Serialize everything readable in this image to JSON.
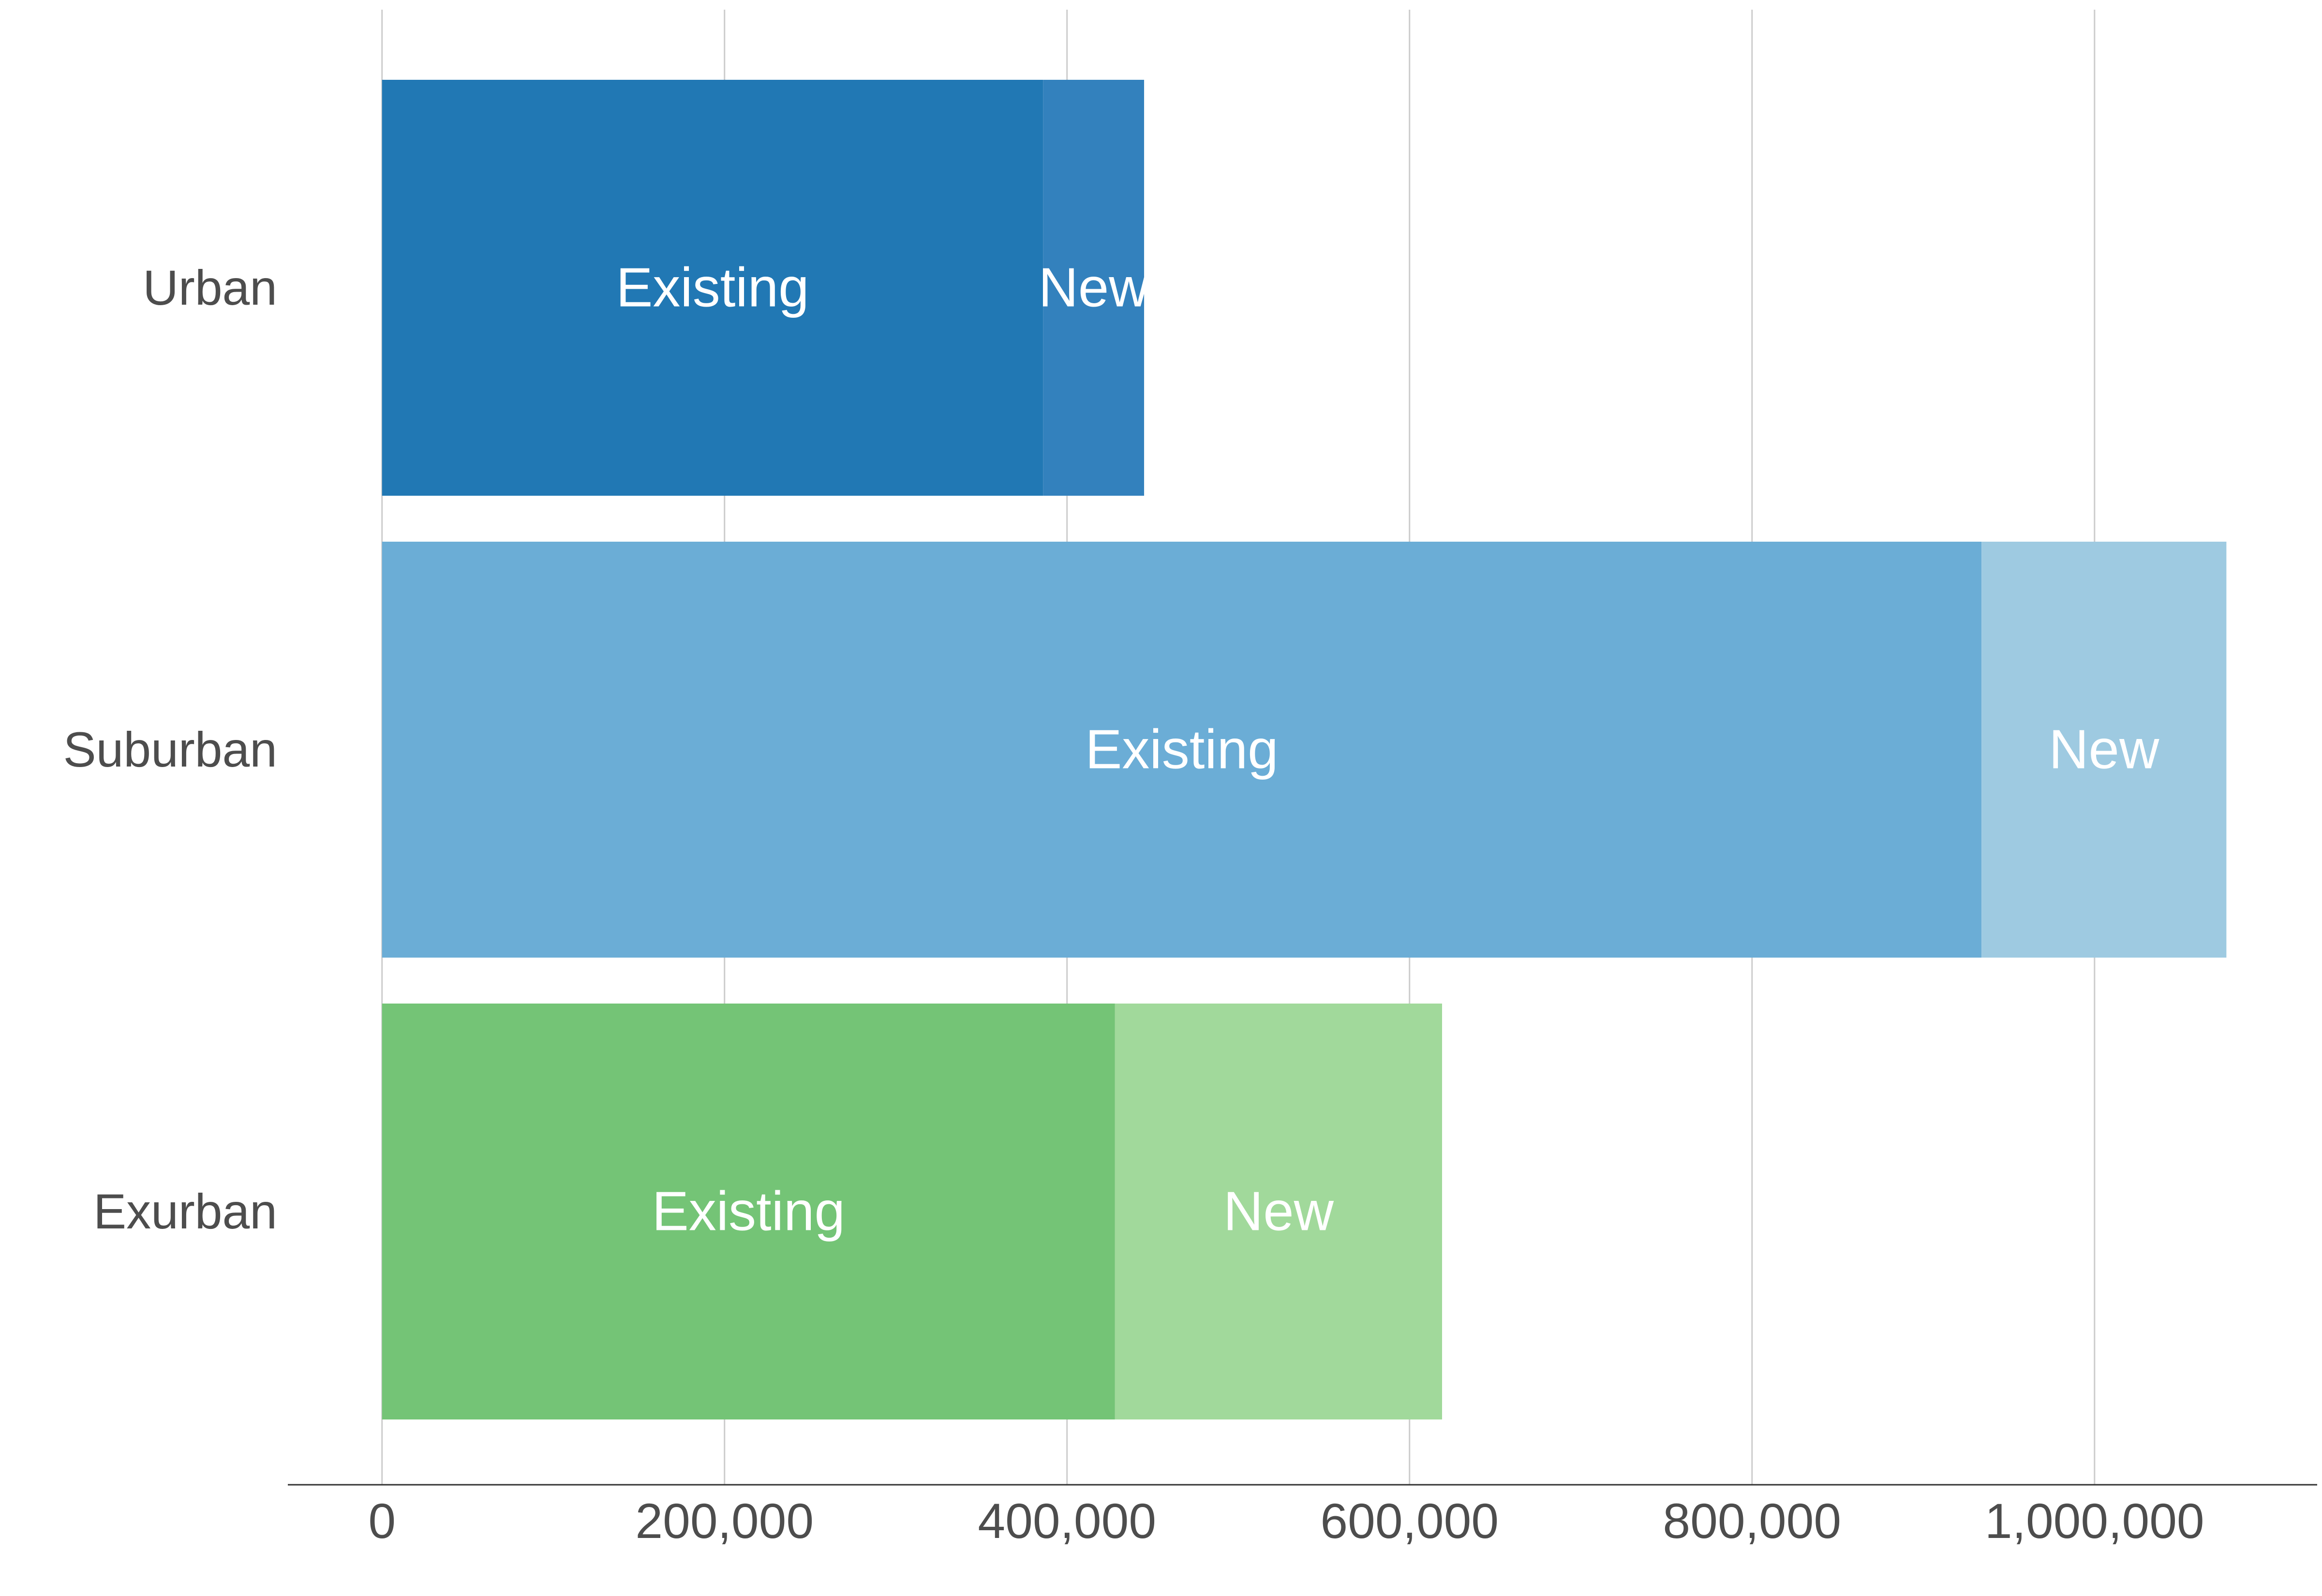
{
  "chart_data": {
    "type": "bar",
    "orientation": "horizontal",
    "stacked": true,
    "categories": [
      "Urban",
      "Suburban",
      "Exurban"
    ],
    "series": [
      {
        "name": "Existing",
        "values": [
          386000,
          934000,
          428000
        ]
      },
      {
        "name": "New",
        "values": [
          59000,
          143000,
          191000
        ]
      }
    ],
    "segment_colors": [
      [
        "#2178b4",
        "#3381bd"
      ],
      [
        "#6badd6",
        "#9ecae1"
      ],
      [
        "#74c476",
        "#a1d99b"
      ]
    ],
    "xlim": [
      -55000,
      1130000
    ],
    "x_ticks": [
      0,
      200000,
      400000,
      600000,
      800000,
      1000000
    ],
    "x_tick_labels": [
      "0",
      "200,000",
      "400,000",
      "600,000",
      "800,000",
      "1,000,000"
    ],
    "grid": true,
    "legend": "none",
    "title": "",
    "xlabel": "",
    "ylabel": ""
  }
}
